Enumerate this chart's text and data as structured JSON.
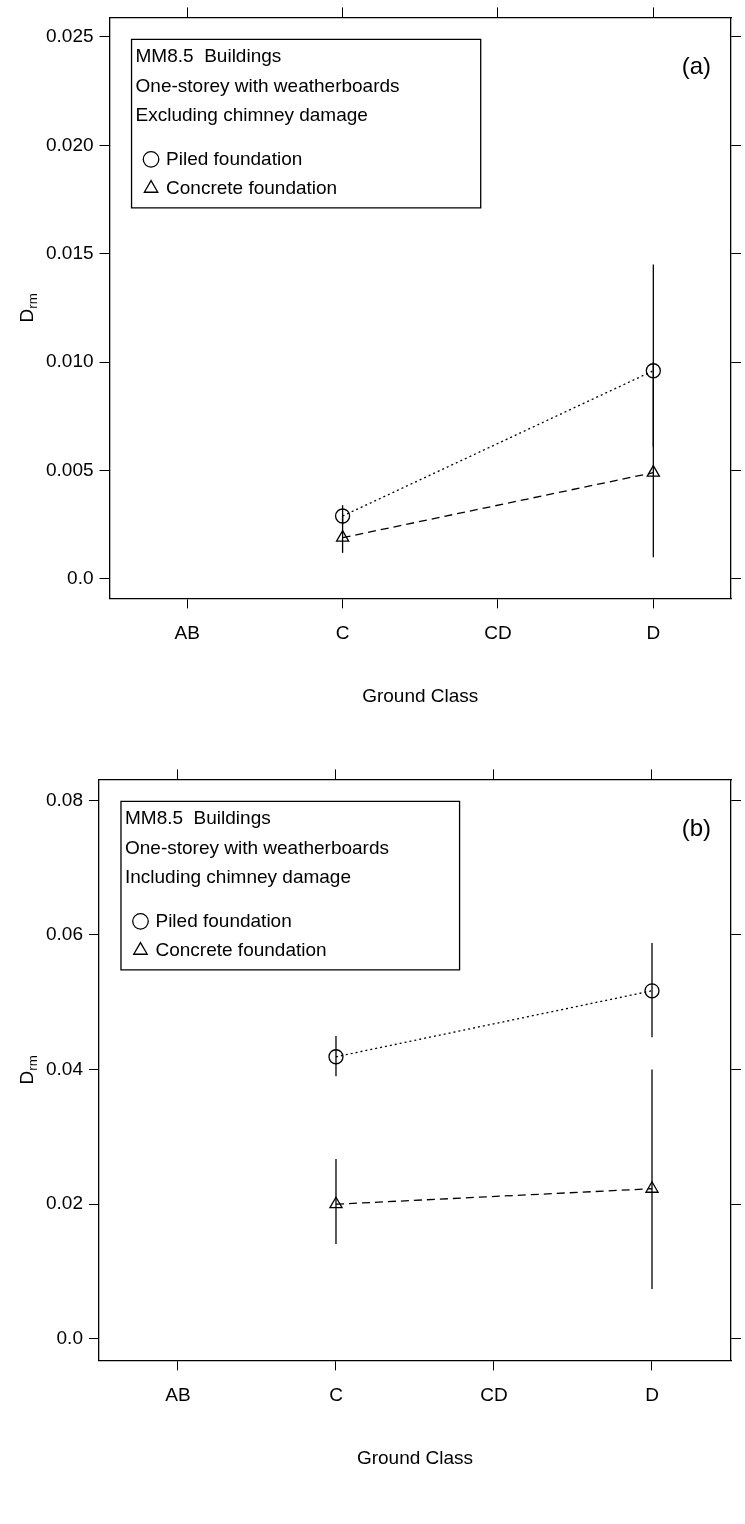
{
  "chart_data": [
    {
      "type": "line",
      "categories": [
        "AB",
        "C",
        "CD",
        "D"
      ],
      "xlabel": "Ground Class",
      "ylabel": "D$_{rm}$",
      "legend": "top left",
      "legend_title": "MM8.5  Buildings\nOne-storey with weatherboards\nExcluding chimney damage",
      "annotations": [
        "(a)"
      ],
      "grid": false,
      "ylim": [
        -0.0009,
        0.0259
      ],
      "yticks": [
        {
          "value": 0,
          "label": "0.0"
        },
        {
          "value": 0.005,
          "label": "0.005"
        },
        {
          "value": 0.01,
          "label": "0.010"
        },
        {
          "value": 0.015,
          "label": "0.015"
        },
        {
          "value": 0.02,
          "label": "0.020"
        },
        {
          "value": 0.025,
          "label": "0.025"
        }
      ],
      "series": [
        {
          "name": "Piled foundation",
          "color": "#000000",
          "marker": "circle",
          "line_style": "dotted",
          "values": [
            null,
            0.0029,
            null,
            0.0096
          ],
          "errors": [
            null,
            [
              0.0025,
              0.0034
            ],
            null,
            [
              0.0061,
              0.0145
            ]
          ]
        },
        {
          "name": "Concrete foundation",
          "color": "#000000",
          "marker": "triangle",
          "line_style": "dashed",
          "values": [
            null,
            0.0019,
            null,
            0.0049
          ],
          "errors": [
            null,
            [
              0.0012,
              0.0029
            ],
            null,
            [
              0.001,
              0.01
            ]
          ]
        }
      ]
    },
    {
      "type": "line",
      "categories": [
        "AB",
        "C",
        "CD",
        "D"
      ],
      "xlabel": "Ground Class",
      "ylabel": "D$_{rm}$",
      "legend": "top left",
      "legend_title": "MM8.5  Buildings\nOne-storey with weatherboards\nIncluding chimney damage",
      "annotations": [
        "(b)"
      ],
      "grid": false,
      "ylim": [
        -0.0032,
        0.0831
      ],
      "yticks": [
        {
          "value": 0,
          "label": "0.0"
        },
        0.02,
        0.04,
        0.06,
        0.08
      ],
      "series": [
        {
          "name": "Piled foundation",
          "color": "#000000",
          "marker": "circle",
          "line_style": "dotted",
          "values": [
            null,
            0.0419,
            null,
            0.0517
          ],
          "errors": [
            null,
            [
              0.039,
              0.045
            ],
            null,
            [
              0.0448,
              0.0588
            ]
          ]
        },
        {
          "name": "Concrete foundation",
          "color": "#000000",
          "marker": "triangle",
          "line_style": "dashed",
          "values": [
            null,
            0.02,
            null,
            0.0223
          ],
          "errors": [
            null,
            [
              0.0141,
              0.0267
            ],
            null,
            [
              0.0074,
              0.04
            ]
          ]
        }
      ]
    }
  ]
}
